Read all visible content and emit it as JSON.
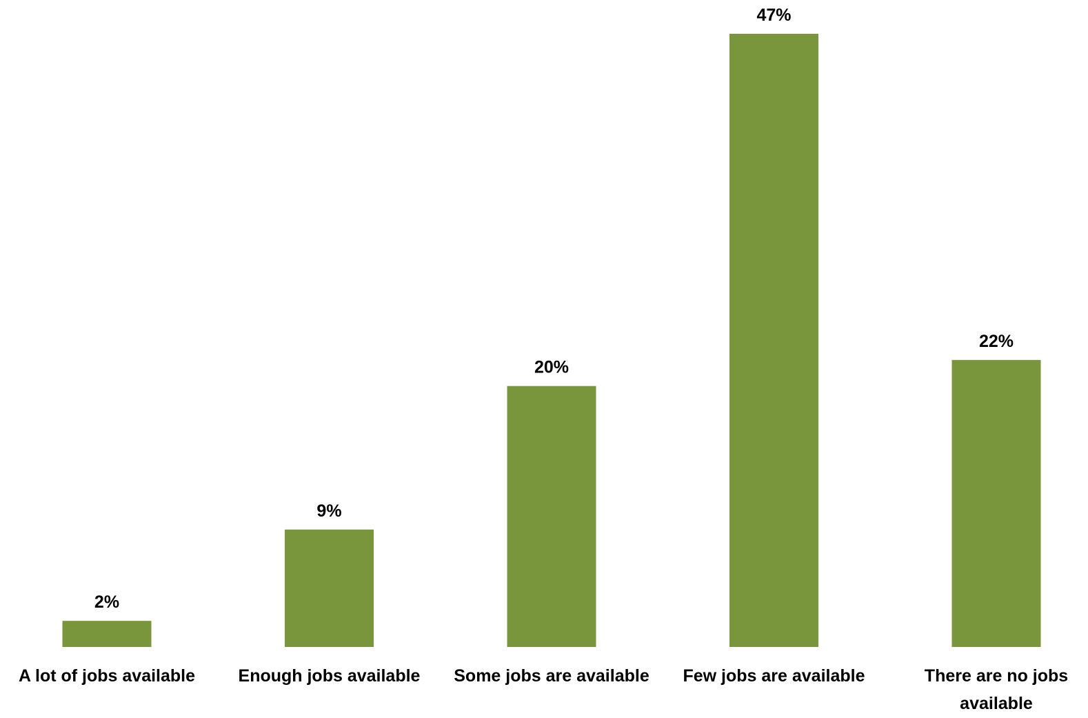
{
  "chart_data": {
    "type": "bar",
    "categories": [
      "A lot of jobs available",
      "Enough jobs available",
      "Some jobs are available",
      "Few jobs are available",
      "There are no jobs available"
    ],
    "values": [
      2,
      9,
      20,
      47,
      22
    ],
    "value_labels": [
      "2%",
      "9%",
      "20%",
      "47%",
      "22%"
    ],
    "unit": "%",
    "ylim": [
      0,
      47
    ],
    "grid": false,
    "legend": "none",
    "bar_color": "#7A963D"
  }
}
